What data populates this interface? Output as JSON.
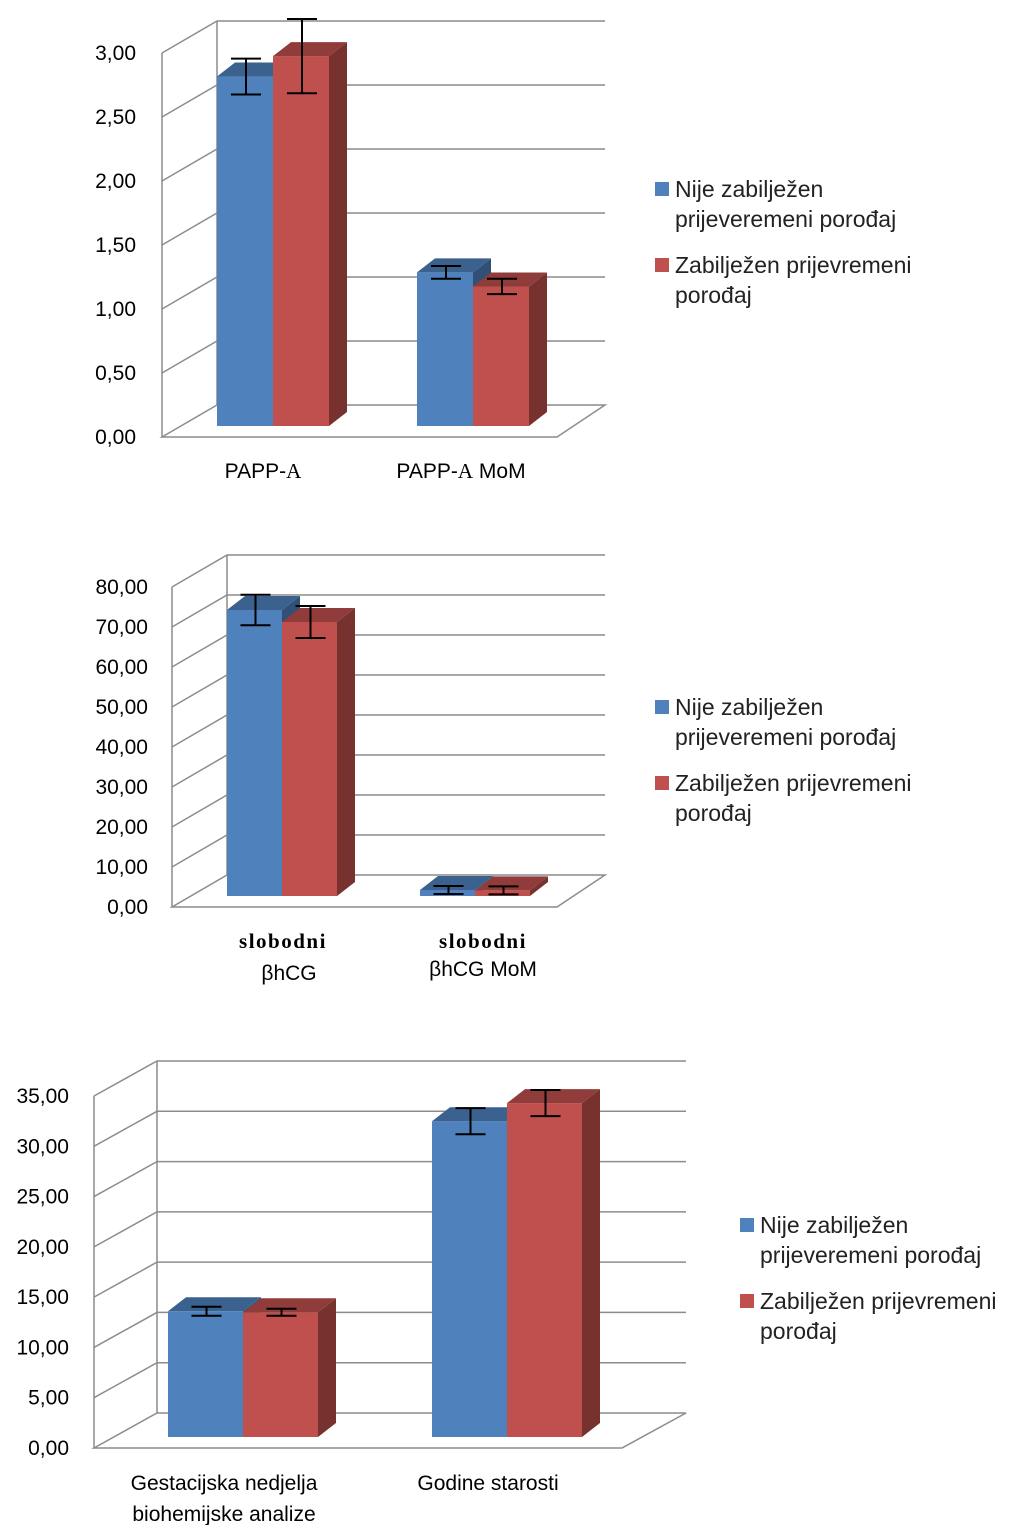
{
  "colors": {
    "series_0": "#4f81bd",
    "series_1": "#c0504d",
    "grid": "#8c8c8c",
    "error_bar": "#000000"
  },
  "chart_data": [
    {
      "type": "bar",
      "title": "",
      "xlabel": "",
      "ylabel": "",
      "ylim": [
        0,
        3
      ],
      "ytick_labels": [
        "0,00",
        "0,50",
        "1,00",
        "1,50",
        "2,00",
        "2,50",
        "3,00"
      ],
      "category_labels": [
        [
          {
            "text": "PAPP-",
            "style": "sans"
          },
          {
            "text": "A",
            "style": "serif"
          }
        ],
        [
          {
            "text": "PAPP-",
            "style": "sans"
          },
          {
            "text": "A",
            "style": "serif"
          },
          {
            "text": " MoM",
            "style": "sans"
          }
        ]
      ],
      "categories": [
        "PAPP-A",
        "PAPP-A MoM"
      ],
      "series": [
        {
          "name": "Nije zabilježen prijeveremeni porođaj",
          "values": [
            2.73,
            1.2
          ],
          "error": [
            0.14,
            0.05
          ]
        },
        {
          "name": "Zabilježen prijevremeni porođaj",
          "values": [
            2.89,
            1.09
          ],
          "error": [
            0.29,
            0.06
          ]
        }
      ],
      "grid": true,
      "legend": "right",
      "legend_lines": [
        [
          "Nije zabilježen",
          "prijeveremeni porođaj"
        ],
        [
          "Zabilježen prijevremeni",
          "porođaj"
        ]
      ]
    },
    {
      "type": "bar",
      "title": "",
      "xlabel": "",
      "ylabel": "",
      "ylim": [
        0,
        80
      ],
      "ytick_labels": [
        "0,00",
        "10,00",
        "20,00",
        "30,00",
        "40,00",
        "50,00",
        "60,00",
        "70,00",
        "80,00"
      ],
      "category_labels": [
        [
          {
            "text": "slobodni",
            "style": "bold"
          },
          {
            "text": "βhCG",
            "style": "sans"
          }
        ],
        [
          {
            "text": "slobodni",
            "style": "bold"
          },
          {
            "text": "βhCG MoM",
            "style": "sans"
          }
        ]
      ],
      "categories": [
        "slobodni βhCG",
        "slobodni βhCG MoM"
      ],
      "series": [
        {
          "name": "Nije zabilježen prijeveremeni porođaj",
          "values": [
            71.5,
            1.5
          ],
          "error": [
            3.8,
            1.0
          ]
        },
        {
          "name": "Zabilježen prijevremeni porođaj",
          "values": [
            68.5,
            1.4
          ],
          "error": [
            4.0,
            1.0
          ]
        }
      ],
      "grid": true,
      "legend": "right",
      "legend_lines": [
        [
          "Nije zabilježen",
          "prijeveremeni porođaj"
        ],
        [
          "Zabilježen prijevremeni",
          "porođaj"
        ]
      ]
    },
    {
      "type": "bar",
      "title": "",
      "xlabel": "",
      "ylabel": "",
      "ylim": [
        0,
        35
      ],
      "ytick_labels": [
        "0,00",
        "5,00",
        "10,00",
        "15,00",
        "20,00",
        "25,00",
        "30,00",
        "35,00"
      ],
      "category_labels": [
        [
          {
            "text": "Gestacijska nedjelja",
            "style": "sans"
          },
          {
            "text": "biohemijske analize",
            "style": "sans"
          }
        ],
        [
          {
            "text": "Godine starosti",
            "style": "sans"
          }
        ]
      ],
      "categories": [
        "Gestacijska nedjelja biohemijske analize",
        "Godine starosti"
      ],
      "series": [
        {
          "name": "Nije zabilježen prijeveremeni porođaj",
          "values": [
            12.5,
            31.4
          ],
          "error": [
            0.45,
            1.3
          ]
        },
        {
          "name": "Zabilježen prijevremeni porođaj",
          "values": [
            12.4,
            33.2
          ],
          "error": [
            0.35,
            1.3
          ]
        }
      ],
      "grid": true,
      "legend": "right",
      "legend_lines": [
        [
          "Nije zabilježen",
          "prijeveremeni porođaj"
        ],
        [
          "Zabilježen prijevremeni",
          "porođaj"
        ]
      ]
    }
  ]
}
